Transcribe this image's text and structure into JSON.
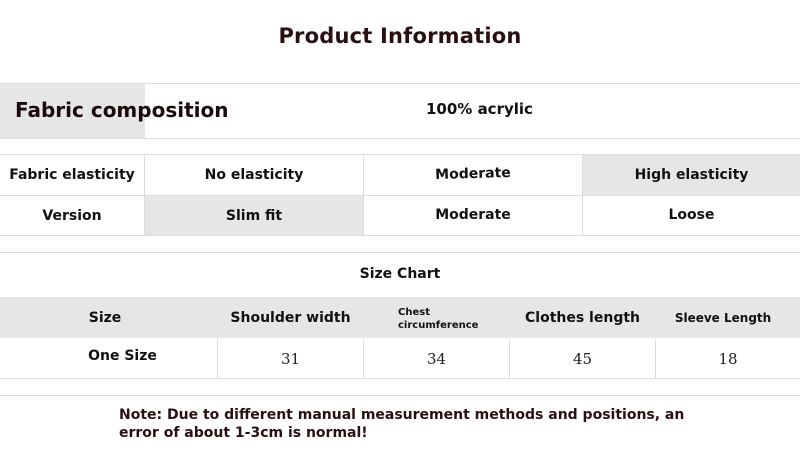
{
  "title": "Product Information",
  "fabric": {
    "label": "Fabric composition",
    "value": "100% acrylic"
  },
  "attributes": {
    "elasticity": {
      "label": "Fabric elasticity",
      "options": [
        "No elasticity",
        "Moderate",
        "High elasticity"
      ],
      "selected": "High elasticity"
    },
    "version": {
      "label": "Version",
      "options": [
        "Slim fit",
        "Moderate",
        "Loose"
      ],
      "selected": "Slim fit"
    }
  },
  "size_chart": {
    "title": "Size Chart",
    "headers": [
      "Size",
      "Shoulder width",
      "Chest circumference",
      "Clothes length",
      "Sleeve Length"
    ],
    "rows": [
      [
        "One Size",
        "31",
        "34",
        "45",
        "18"
      ]
    ]
  },
  "note": "Note: Due to different manual measurement methods and positions, an error of about 1-3cm is normal!",
  "colors": {
    "highlight_gray": "#e6e6e6",
    "title_color": "#2a0f12",
    "rule_color": "#dcdcdc"
  }
}
